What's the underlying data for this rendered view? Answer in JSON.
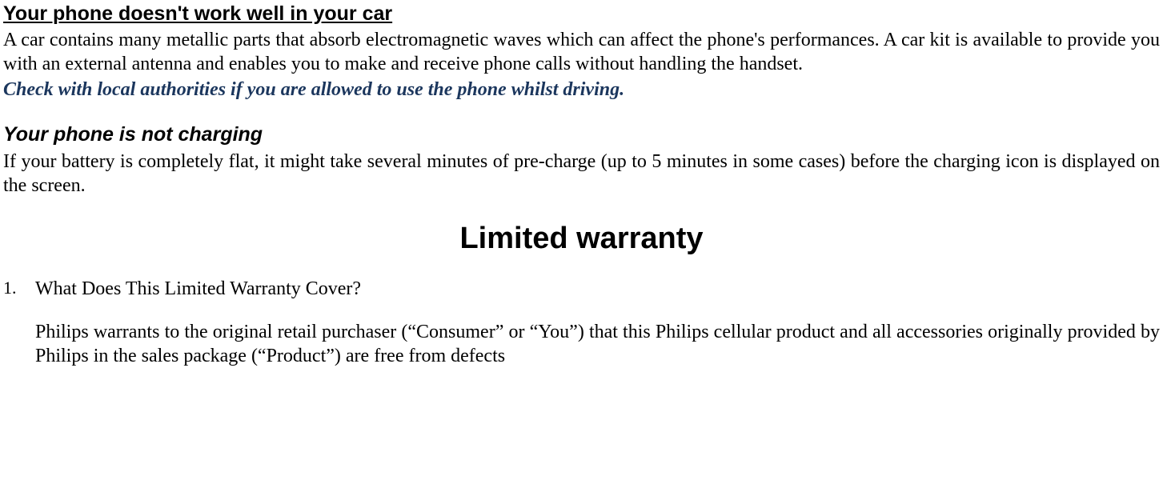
{
  "section1": {
    "heading": "Your phone doesn't work well in your car",
    "body": "A car contains many metallic parts that absorb electromagnetic waves which can affect the phone's performances. A car kit is available to provide you with an external antenna and enables you to make and receive phone calls without handling the handset.",
    "note": "Check with local authorities if you are allowed to use the phone whilst driving."
  },
  "section2": {
    "heading": "Your phone is not charging",
    "body": "If your battery is completely flat, it might take several minutes of pre-charge (up to 5 minutes in some cases) before the charging icon is displayed on the screen."
  },
  "title": "Limited warranty",
  "warranty": {
    "num": "1.",
    "question": "What Does This Limited Warranty Cover?",
    "para": "Philips warrants to the original retail purchaser (“Consumer” or “You”) that this Philips cellular product and all accessories originally provided by Philips in the sales package (“Product”) are free from defects"
  },
  "colors": {
    "text": "#000000",
    "note": "#1b365d",
    "background": "#ffffff"
  }
}
